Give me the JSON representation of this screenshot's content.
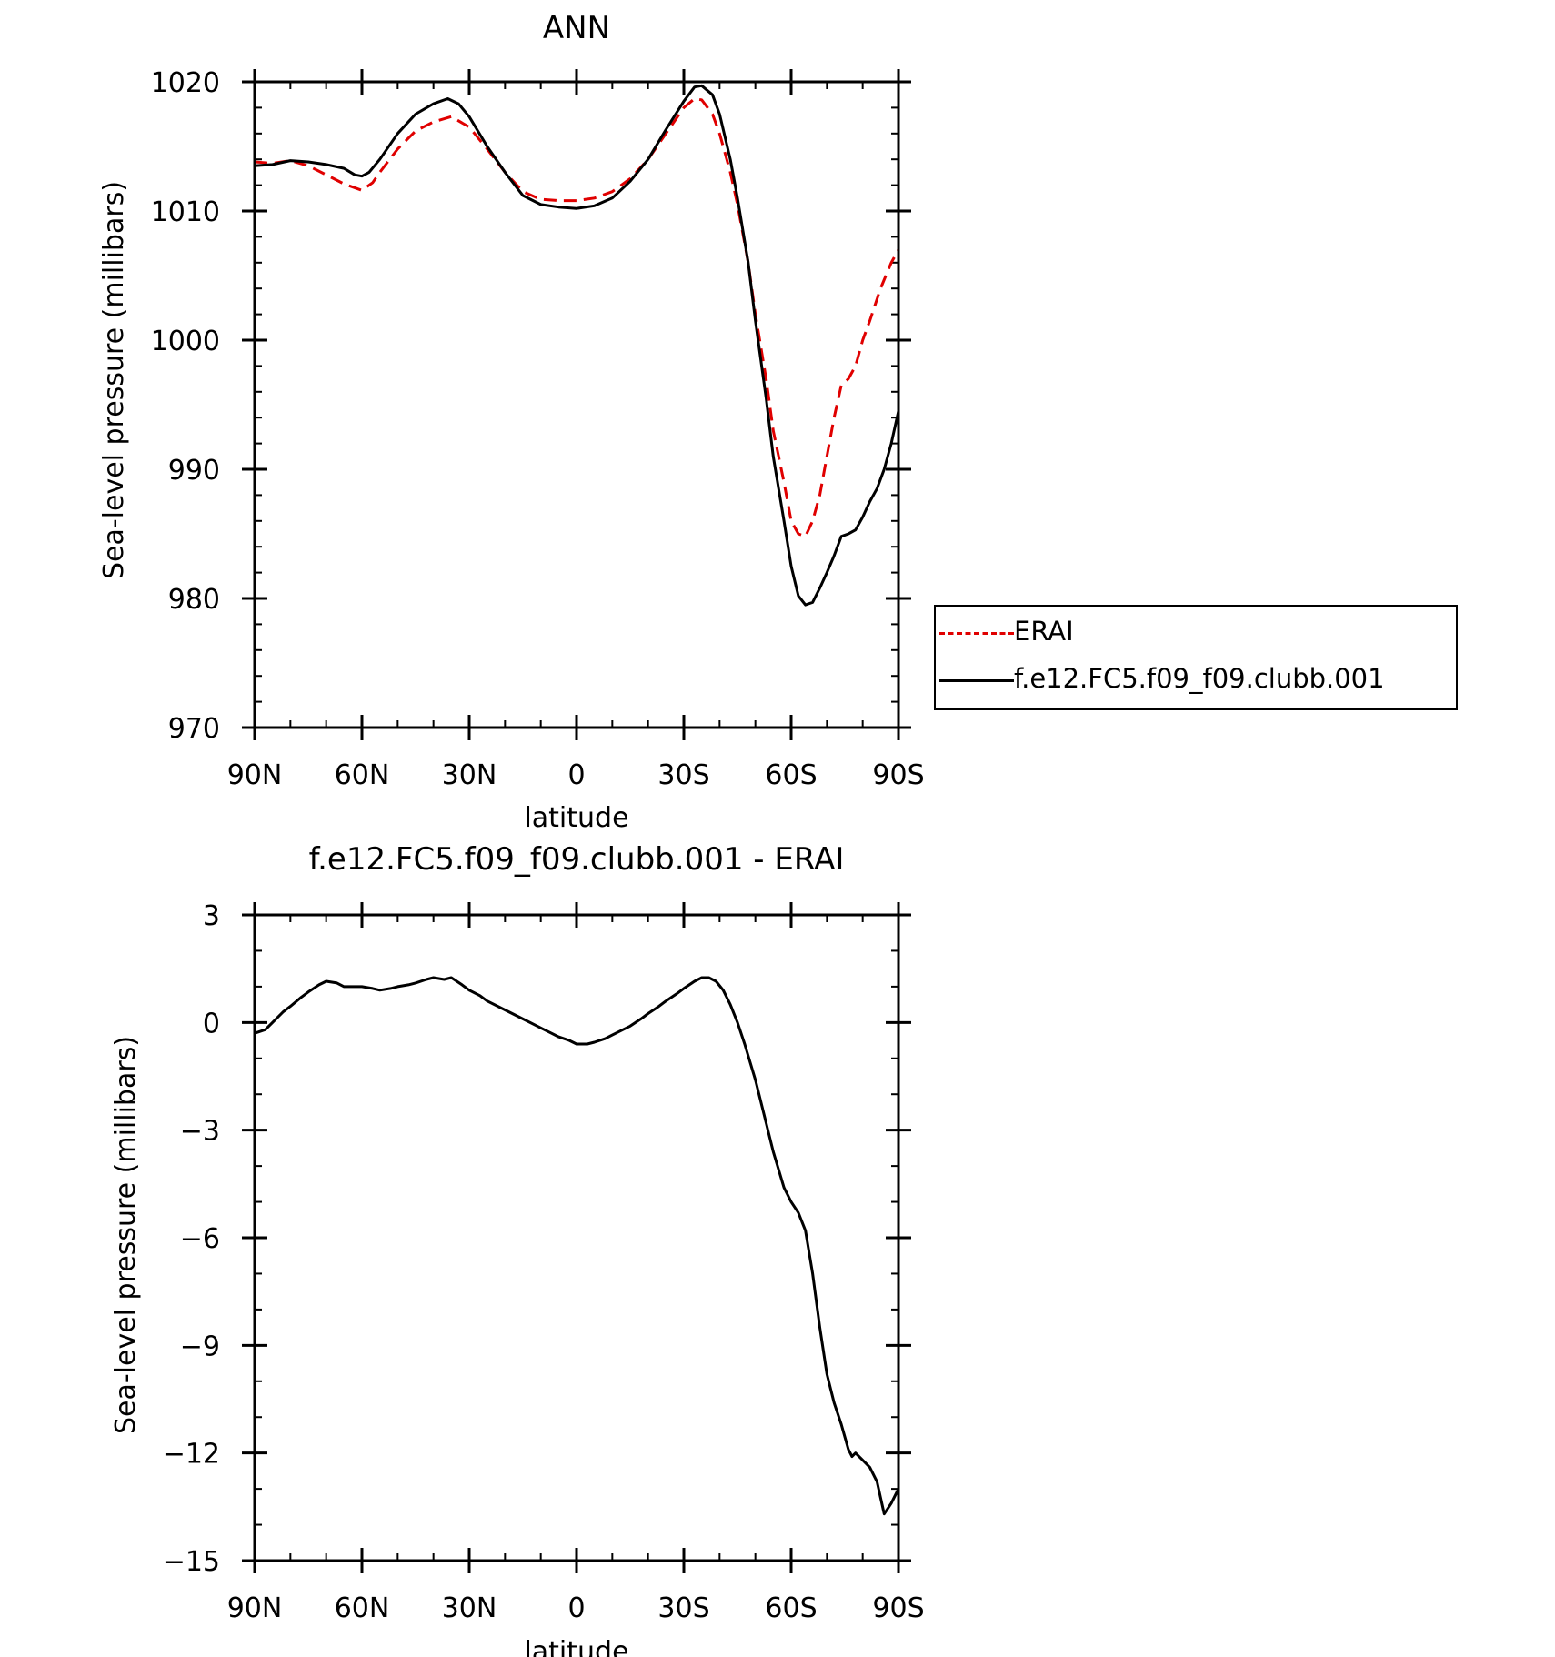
{
  "chart_data": [
    {
      "type": "line",
      "title": "ANN",
      "xlabel": "latitude",
      "ylabel": "Sea-level pressure (millibars)",
      "xlim": [
        90,
        -90
      ],
      "ylim": [
        970,
        1020
      ],
      "xticks": [
        {
          "value": 90,
          "label": "90N"
        },
        {
          "value": 60,
          "label": "60N"
        },
        {
          "value": 30,
          "label": "30N"
        },
        {
          "value": 0,
          "label": "0"
        },
        {
          "value": -30,
          "label": "30S"
        },
        {
          "value": -60,
          "label": "60S"
        },
        {
          "value": -90,
          "label": "90S"
        }
      ],
      "yticks": [
        {
          "value": 1020,
          "label": "1020"
        },
        {
          "value": 1010,
          "label": "1010"
        },
        {
          "value": 1000,
          "label": "1000"
        },
        {
          "value": 990,
          "label": "990"
        },
        {
          "value": 980,
          "label": "980"
        },
        {
          "value": 970,
          "label": "970"
        }
      ],
      "grid": false,
      "legend": "right",
      "series": [
        {
          "name": "ERAI",
          "color": "#e00000",
          "dash": "dashed",
          "points": [
            [
              90,
              1013.8
            ],
            [
              85,
              1013.7
            ],
            [
              80,
              1013.9
            ],
            [
              75,
              1013.5
            ],
            [
              70,
              1012.8
            ],
            [
              65,
              1012.1
            ],
            [
              60,
              1011.6
            ],
            [
              57,
              1012.2
            ],
            [
              55,
              1013
            ],
            [
              50,
              1014.8
            ],
            [
              45,
              1016.2
            ],
            [
              40,
              1016.9
            ],
            [
              35,
              1017.3
            ],
            [
              30,
              1016.5
            ],
            [
              25,
              1014.8
            ],
            [
              20,
              1013
            ],
            [
              15,
              1011.5
            ],
            [
              10,
              1010.9
            ],
            [
              5,
              1010.8
            ],
            [
              0,
              1010.8
            ],
            [
              -5,
              1011
            ],
            [
              -10,
              1011.5
            ],
            [
              -15,
              1012.5
            ],
            [
              -20,
              1014
            ],
            [
              -25,
              1016
            ],
            [
              -30,
              1018
            ],
            [
              -33,
              1018.7
            ],
            [
              -35,
              1018.6
            ],
            [
              -38,
              1017.5
            ],
            [
              -40,
              1016
            ],
            [
              -43,
              1013
            ],
            [
              -45,
              1010.5
            ],
            [
              -48,
              1006
            ],
            [
              -50,
              1002
            ],
            [
              -53,
              997
            ],
            [
              -55,
              993
            ],
            [
              -58,
              989
            ],
            [
              -60,
              986
            ],
            [
              -62,
              985
            ],
            [
              -64,
              984.8
            ],
            [
              -66,
              986
            ],
            [
              -68,
              988
            ],
            [
              -70,
              991
            ],
            [
              -72,
              994
            ],
            [
              -74,
              996.5
            ],
            [
              -76,
              997
            ],
            [
              -78,
              998
            ],
            [
              -80,
              1000
            ],
            [
              -82,
              1001.5
            ],
            [
              -85,
              1004
            ],
            [
              -88,
              1006
            ],
            [
              -90,
              1007
            ]
          ]
        },
        {
          "name": "f.e12.FC5.f09_f09.clubb.001",
          "color": "#000000",
          "dash": "solid",
          "points": [
            [
              90,
              1013.5
            ],
            [
              85,
              1013.6
            ],
            [
              80,
              1013.9
            ],
            [
              75,
              1013.8
            ],
            [
              70,
              1013.6
            ],
            [
              65,
              1013.3
            ],
            [
              62,
              1012.8
            ],
            [
              60,
              1012.7
            ],
            [
              58,
              1013
            ],
            [
              55,
              1014
            ],
            [
              50,
              1016
            ],
            [
              45,
              1017.5
            ],
            [
              40,
              1018.3
            ],
            [
              36,
              1018.7
            ],
            [
              33,
              1018.3
            ],
            [
              30,
              1017.3
            ],
            [
              25,
              1015
            ],
            [
              20,
              1013
            ],
            [
              15,
              1011.2
            ],
            [
              10,
              1010.5
            ],
            [
              5,
              1010.3
            ],
            [
              0,
              1010.2
            ],
            [
              -5,
              1010.4
            ],
            [
              -10,
              1011
            ],
            [
              -15,
              1012.3
            ],
            [
              -20,
              1014
            ],
            [
              -25,
              1016.3
            ],
            [
              -30,
              1018.5
            ],
            [
              -33,
              1019.6
            ],
            [
              -35,
              1019.7
            ],
            [
              -38,
              1019
            ],
            [
              -40,
              1017.5
            ],
            [
              -43,
              1014
            ],
            [
              -45,
              1011
            ],
            [
              -48,
              1006
            ],
            [
              -50,
              1001.5
            ],
            [
              -53,
              995.5
            ],
            [
              -55,
              991
            ],
            [
              -58,
              986
            ],
            [
              -60,
              982.5
            ],
            [
              -62,
              980.2
            ],
            [
              -64,
              979.5
            ],
            [
              -66,
              979.7
            ],
            [
              -68,
              980.8
            ],
            [
              -70,
              982
            ],
            [
              -72,
              983.3
            ],
            [
              -74,
              984.8
            ],
            [
              -76,
              985
            ],
            [
              -78,
              985.3
            ],
            [
              -80,
              986.3
            ],
            [
              -82,
              987.5
            ],
            [
              -84,
              988.5
            ],
            [
              -86,
              990
            ],
            [
              -88,
              992
            ],
            [
              -90,
              994.5
            ]
          ]
        }
      ]
    },
    {
      "type": "line",
      "title": "f.e12.FC5.f09_f09.clubb.001 - ERAI",
      "xlabel": "latitude",
      "ylabel": "Sea-level pressure (millibars)",
      "xlim": [
        90,
        -90
      ],
      "ylim": [
        -15,
        3
      ],
      "xticks": [
        {
          "value": 90,
          "label": "90N"
        },
        {
          "value": 60,
          "label": "60N"
        },
        {
          "value": 30,
          "label": "30N"
        },
        {
          "value": 0,
          "label": "0"
        },
        {
          "value": -30,
          "label": "30S"
        },
        {
          "value": -60,
          "label": "60S"
        },
        {
          "value": -90,
          "label": "90S"
        }
      ],
      "yticks": [
        {
          "value": 3,
          "label": "3"
        },
        {
          "value": 0,
          "label": "0"
        },
        {
          "value": -3,
          "label": "−3"
        },
        {
          "value": -6,
          "label": "−6"
        },
        {
          "value": -9,
          "label": "−9"
        },
        {
          "value": -12,
          "label": "−12"
        },
        {
          "value": -15,
          "label": "−15"
        }
      ],
      "grid": false,
      "series": [
        {
          "color": "#000000",
          "dash": "solid",
          "points": [
            [
              90,
              -0.3
            ],
            [
              87,
              -0.2
            ],
            [
              85,
              0
            ],
            [
              82,
              0.3
            ],
            [
              80,
              0.45
            ],
            [
              77,
              0.7
            ],
            [
              75,
              0.85
            ],
            [
              72,
              1.05
            ],
            [
              70,
              1.15
            ],
            [
              67,
              1.1
            ],
            [
              65,
              1
            ],
            [
              62,
              1
            ],
            [
              60,
              1
            ],
            [
              57,
              0.95
            ],
            [
              55,
              0.9
            ],
            [
              52,
              0.95
            ],
            [
              50,
              1
            ],
            [
              47,
              1.05
            ],
            [
              45,
              1.1
            ],
            [
              42,
              1.2
            ],
            [
              40,
              1.25
            ],
            [
              37,
              1.2
            ],
            [
              35,
              1.25
            ],
            [
              32,
              1.05
            ],
            [
              30,
              0.9
            ],
            [
              27,
              0.75
            ],
            [
              25,
              0.6
            ],
            [
              20,
              0.35
            ],
            [
              15,
              0.1
            ],
            [
              12,
              -0.05
            ],
            [
              10,
              -0.15
            ],
            [
              7,
              -0.3
            ],
            [
              5,
              -0.4
            ],
            [
              2,
              -0.5
            ],
            [
              0,
              -0.6
            ],
            [
              -3,
              -0.6
            ],
            [
              -5,
              -0.55
            ],
            [
              -8,
              -0.45
            ],
            [
              -10,
              -0.35
            ],
            [
              -13,
              -0.2
            ],
            [
              -15,
              -0.1
            ],
            [
              -18,
              0.1
            ],
            [
              -20,
              0.25
            ],
            [
              -23,
              0.45
            ],
            [
              -25,
              0.6
            ],
            [
              -28,
              0.8
            ],
            [
              -30,
              0.95
            ],
            [
              -33,
              1.15
            ],
            [
              -35,
              1.25
            ],
            [
              -37,
              1.25
            ],
            [
              -39,
              1.15
            ],
            [
              -41,
              0.9
            ],
            [
              -43,
              0.5
            ],
            [
              -45,
              0
            ],
            [
              -47,
              -0.6
            ],
            [
              -50,
              -1.6
            ],
            [
              -53,
              -2.8
            ],
            [
              -55,
              -3.6
            ],
            [
              -58,
              -4.6
            ],
            [
              -60,
              -5
            ],
            [
              -62,
              -5.3
            ],
            [
              -64,
              -5.8
            ],
            [
              -66,
              -7
            ],
            [
              -68,
              -8.5
            ],
            [
              -70,
              -9.8
            ],
            [
              -72,
              -10.6
            ],
            [
              -74,
              -11.2
            ],
            [
              -76,
              -11.9
            ],
            [
              -77,
              -12.1
            ],
            [
              -78,
              -12
            ],
            [
              -80,
              -12.2
            ],
            [
              -82,
              -12.4
            ],
            [
              -84,
              -12.8
            ],
            [
              -86,
              -13.7
            ],
            [
              -88,
              -13.4
            ],
            [
              -90,
              -13
            ]
          ]
        }
      ]
    }
  ]
}
